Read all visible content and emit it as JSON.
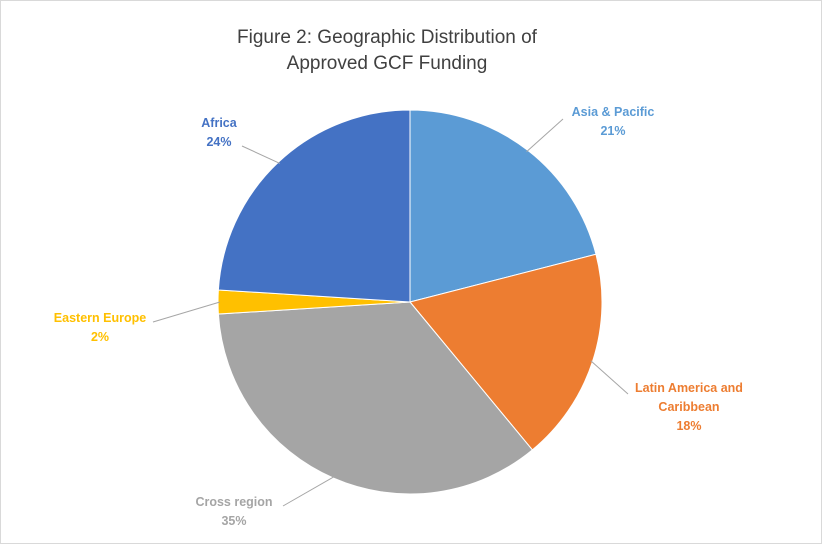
{
  "chart_data": {
    "type": "pie",
    "title": [
      "Figure 2: Geographic Distribution of",
      "Approved GCF Funding"
    ],
    "slices": [
      {
        "label": [
          "Asia & Pacific"
        ],
        "percent_label": "21%",
        "value": 21,
        "color": "#5b9bd5"
      },
      {
        "label": [
          "Latin America and",
          "Caribbean"
        ],
        "percent_label": "18%",
        "value": 18,
        "color": "#ed7d31"
      },
      {
        "label": [
          "Cross region"
        ],
        "percent_label": "35%",
        "value": 35,
        "color": "#a5a5a5"
      },
      {
        "label": [
          "Eastern Europe"
        ],
        "percent_label": "2%",
        "value": 2,
        "color": "#ffc000"
      },
      {
        "label": [
          "Africa"
        ],
        "percent_label": "24%",
        "value": 24,
        "color": "#4472c4"
      }
    ],
    "start_angle": "12 o'clock",
    "direction": "clockwise",
    "legend": "none",
    "data_labels": "outside-with-leader-lines"
  }
}
